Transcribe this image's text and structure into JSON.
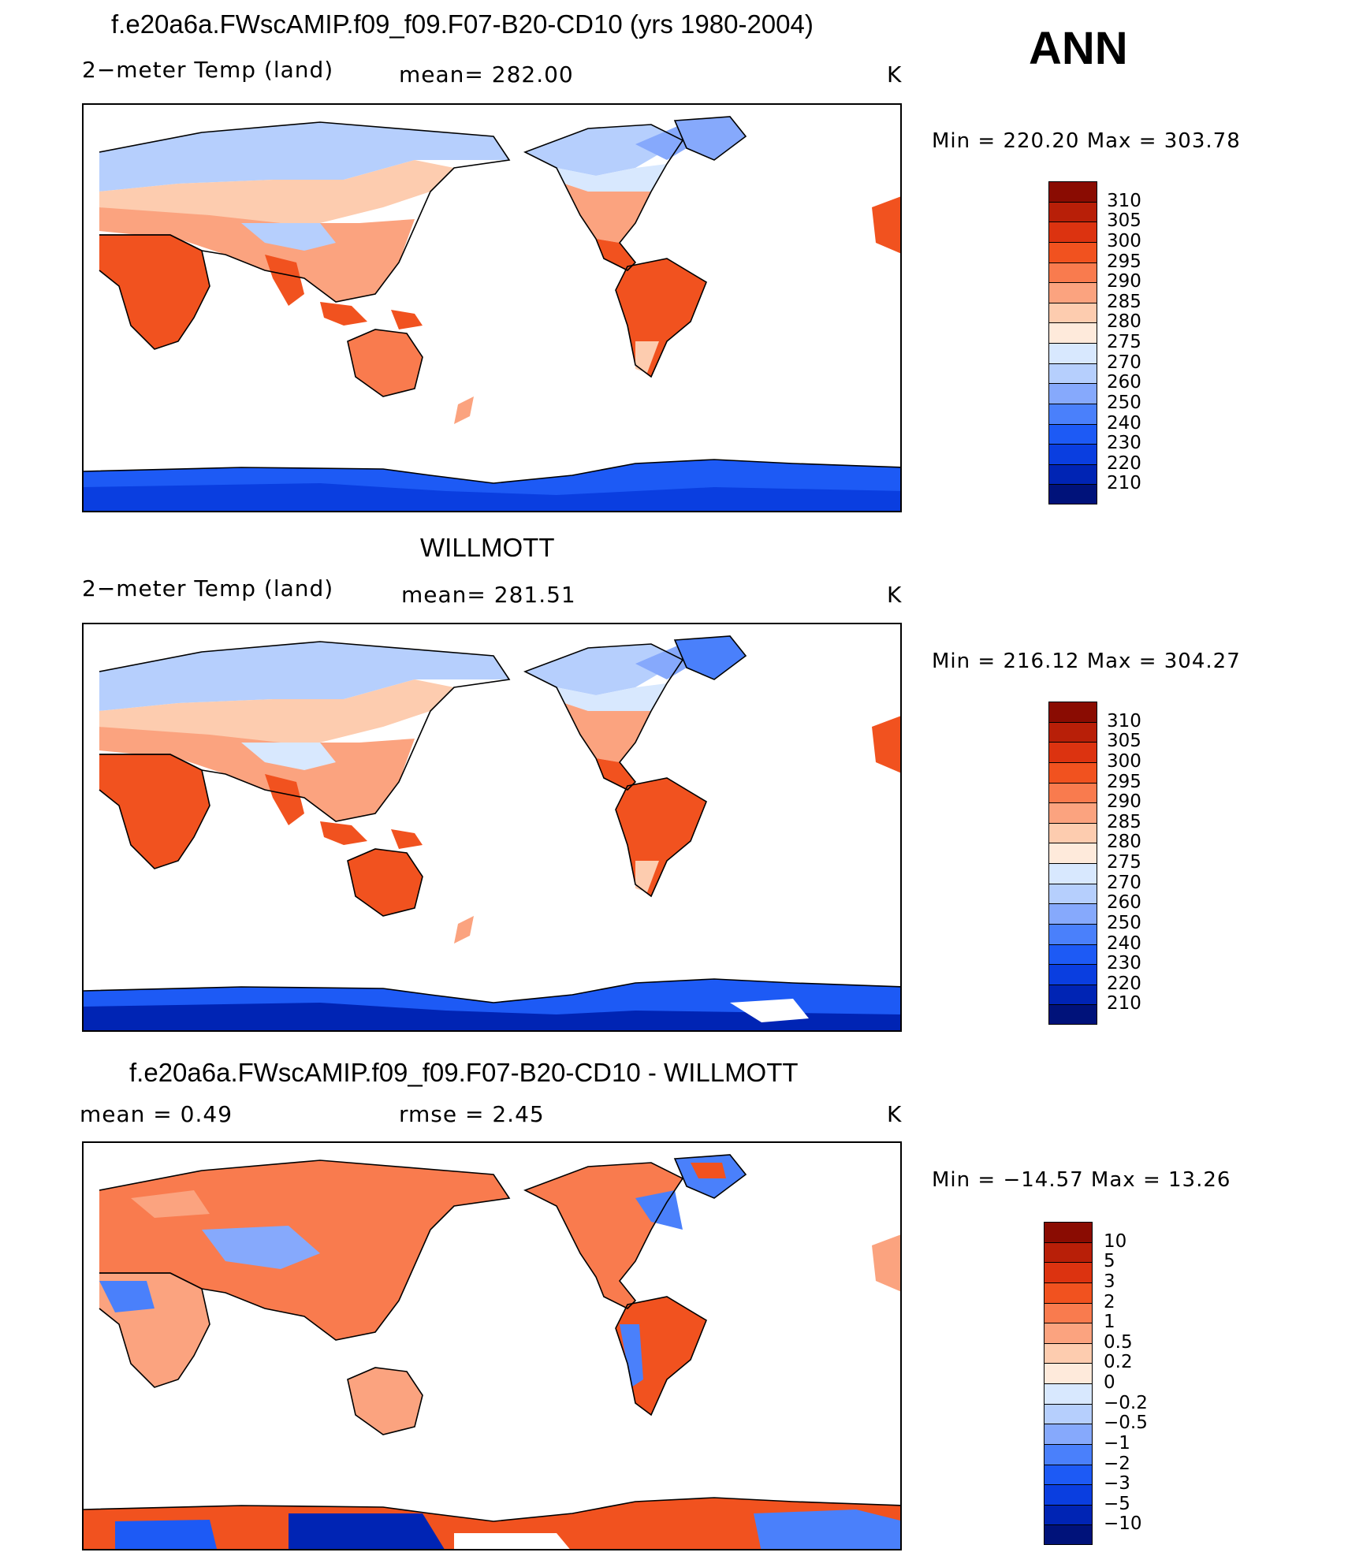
{
  "season": "ANN",
  "colors": {
    "abs_scale": [
      "#00127a",
      "#0024b4",
      "#0a3ee0",
      "#1d5af5",
      "#4a80fb",
      "#86a9fc",
      "#b6cffd",
      "#d8e8fe",
      "#feeadb",
      "#fdccaf",
      "#fba37f",
      "#f97b4e",
      "#f1521f",
      "#dc3310",
      "#b81f08",
      "#8a0c02"
    ],
    "diff_scale": [
      "#00127a",
      "#0024b4",
      "#0a3ee0",
      "#1d5af5",
      "#4a80fb",
      "#86a9fc",
      "#b6cffd",
      "#d8e8fe",
      "#feeadb",
      "#fdccaf",
      "#fba37f",
      "#f97b4e",
      "#f1521f",
      "#dc3310",
      "#b81f08",
      "#8a0c02"
    ]
  },
  "panels": [
    {
      "title": "f.e20a6a.FWscAMIP.f09_f09.F07-B20-CD10 (yrs 1980-2004)",
      "left_label": "2−meter Temp (land)",
      "center_label": "mean=  282.00",
      "units": "K",
      "min_max": "Min  =  220.20  Max  =  303.78",
      "colorbar_labels": [
        "310",
        "305",
        "300",
        "295",
        "290",
        "285",
        "280",
        "275",
        "270",
        "260",
        "250",
        "240",
        "230",
        "220",
        "210"
      ]
    },
    {
      "title": "WILLMOTT",
      "left_label": "2−meter Temp (land)",
      "center_label": "mean=  281.51",
      "units": "K",
      "min_max": "Min  =  216.12  Max  =  304.27",
      "colorbar_labels": [
        "310",
        "305",
        "300",
        "295",
        "290",
        "285",
        "280",
        "275",
        "270",
        "260",
        "250",
        "240",
        "230",
        "220",
        "210"
      ]
    },
    {
      "title": "f.e20a6a.FWscAMIP.f09_f09.F07-B20-CD10 - WILLMOTT",
      "left_label": "mean  =      0.49",
      "center_label": "rmse  =      2.45",
      "units": "K",
      "min_max": "Min  =  −14.57  Max  =    13.26",
      "colorbar_labels": [
        "10",
        "5",
        "3",
        "2",
        "1",
        "0.5",
        "0.2",
        "0",
        "−0.2",
        "−0.5",
        "−1",
        "−2",
        "−3",
        "−5",
        "−10"
      ]
    }
  ]
}
